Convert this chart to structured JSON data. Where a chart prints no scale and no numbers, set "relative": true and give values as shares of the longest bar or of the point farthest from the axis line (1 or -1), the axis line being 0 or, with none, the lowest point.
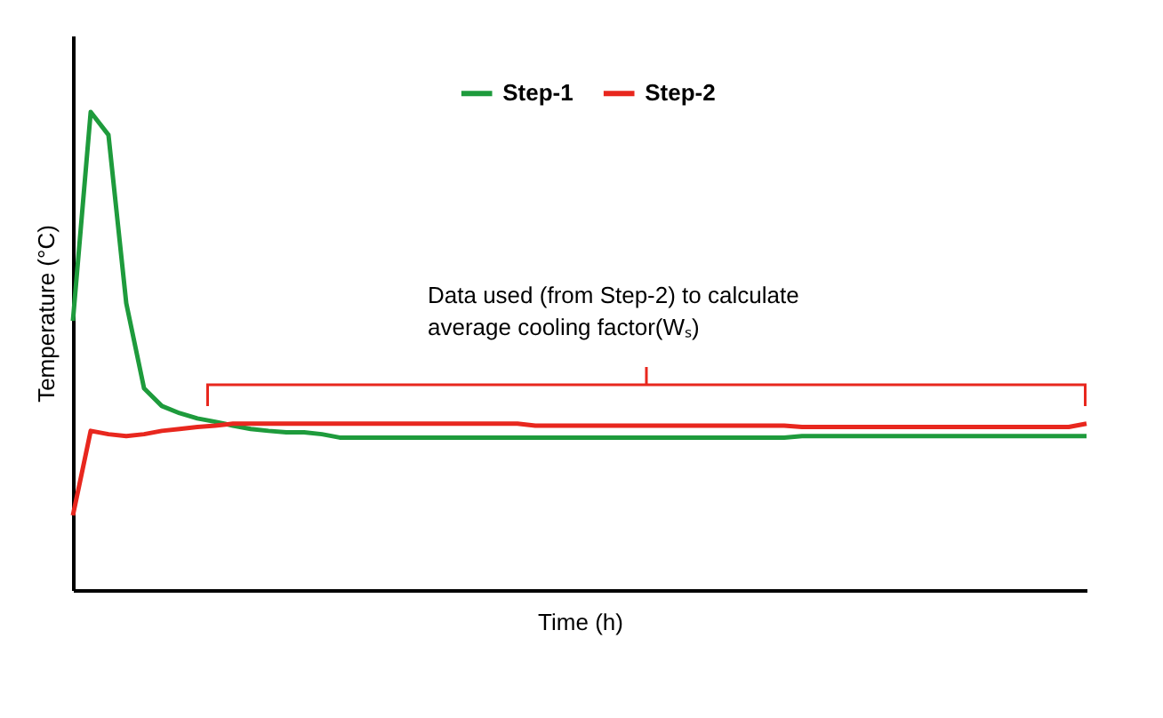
{
  "chart_data": {
    "type": "line",
    "relative": true,
    "xlabel": "Time (h)",
    "ylabel": "Temperature (°C)",
    "legend": "top",
    "grid": false,
    "categories": [
      null,
      null,
      null,
      null,
      null,
      null,
      null,
      null,
      null,
      null,
      null,
      null,
      null,
      null,
      null,
      null,
      null,
      null,
      null,
      null,
      null,
      null,
      null,
      null,
      null,
      null,
      null,
      null,
      null,
      null,
      null,
      null,
      null,
      null,
      null,
      null,
      null,
      null,
      null,
      null,
      null,
      null,
      null,
      null,
      null,
      null,
      null,
      null,
      null,
      null,
      null,
      null,
      null,
      null,
      null,
      null,
      null,
      null
    ],
    "series": [
      {
        "name": "Step-1",
        "color": "#1e9b3c",
        "values": [
          0.563,
          1.0,
          0.952,
          0.6,
          0.422,
          0.385,
          0.37,
          0.359,
          0.352,
          0.344,
          0.337,
          0.333,
          0.33,
          0.33,
          0.326,
          0.319,
          0.319,
          0.319,
          0.319,
          0.319,
          0.319,
          0.319,
          0.319,
          0.319,
          0.319,
          0.319,
          0.319,
          0.319,
          0.319,
          0.319,
          0.319,
          0.319,
          0.319,
          0.319,
          0.319,
          0.319,
          0.319,
          0.319,
          0.319,
          0.319,
          0.319,
          0.322,
          0.322,
          0.322,
          0.322,
          0.322,
          0.322,
          0.322,
          0.322,
          0.322,
          0.322,
          0.322,
          0.322,
          0.322,
          0.322,
          0.322,
          0.322,
          0.322
        ]
      },
      {
        "name": "Step-2",
        "color": "#e8271e",
        "values": [
          0.156,
          0.333,
          0.326,
          0.322,
          0.326,
          0.333,
          0.337,
          0.341,
          0.344,
          0.348,
          0.348,
          0.348,
          0.348,
          0.348,
          0.348,
          0.348,
          0.348,
          0.348,
          0.348,
          0.348,
          0.348,
          0.348,
          0.348,
          0.348,
          0.348,
          0.348,
          0.344,
          0.344,
          0.344,
          0.344,
          0.344,
          0.344,
          0.344,
          0.344,
          0.344,
          0.344,
          0.344,
          0.344,
          0.344,
          0.344,
          0.344,
          0.341,
          0.341,
          0.341,
          0.341,
          0.341,
          0.341,
          0.341,
          0.341,
          0.341,
          0.341,
          0.341,
          0.341,
          0.341,
          0.341,
          0.341,
          0.341,
          0.348
        ]
      }
    ],
    "annotations": [
      "Data used (from Step-2) to calculate average cooling factor(Wₛ)"
    ]
  }
}
